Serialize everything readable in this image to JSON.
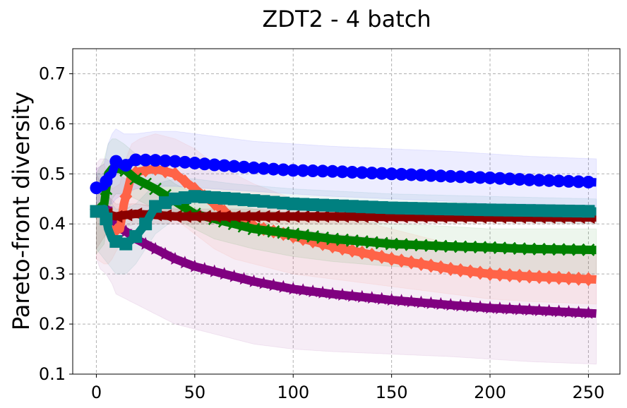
{
  "chart_data": {
    "type": "line",
    "title": "ZDT2 - 4 batch",
    "xlabel": "",
    "ylabel": "Pareto-front diversity",
    "xlim": [
      -12,
      266
    ],
    "ylim": [
      0.1,
      0.75
    ],
    "xticks": [
      0,
      50,
      100,
      150,
      200,
      250
    ],
    "xtick_labels": [
      "0",
      "50",
      "100",
      "150",
      "200",
      "250"
    ],
    "yticks": [
      0.1,
      0.2,
      0.3,
      0.4,
      0.5,
      0.6,
      0.7
    ],
    "ytick_labels": [
      "0.1",
      "0.2",
      "0.3",
      "0.4",
      "0.5",
      "0.6",
      "0.7"
    ],
    "grid": true,
    "x_max": 254,
    "series": [
      {
        "name": "purple-star",
        "color": "#800080",
        "marker": "star",
        "step": 5,
        "key_x": [
          0,
          2,
          5,
          8,
          10,
          15,
          20,
          30,
          40,
          50,
          60,
          70,
          80,
          100,
          120,
          150,
          180,
          200,
          220,
          254
        ],
        "key_y": [
          0.425,
          0.43,
          0.43,
          0.405,
          0.395,
          0.385,
          0.37,
          0.35,
          0.33,
          0.315,
          0.305,
          0.295,
          0.285,
          0.27,
          0.26,
          0.248,
          0.238,
          0.232,
          0.228,
          0.221
        ],
        "band_low": [
          0.33,
          0.31,
          0.3,
          0.28,
          0.26,
          0.25,
          0.24,
          0.22,
          0.2,
          0.19,
          0.18,
          0.17,
          0.16,
          0.15,
          0.145,
          0.14,
          0.135,
          0.13,
          0.125,
          0.12
        ],
        "band_high": [
          0.52,
          0.53,
          0.53,
          0.52,
          0.5,
          0.49,
          0.48,
          0.46,
          0.44,
          0.43,
          0.42,
          0.41,
          0.4,
          0.39,
          0.38,
          0.37,
          0.36,
          0.355,
          0.35,
          0.34
        ]
      },
      {
        "name": "tomato-diamond",
        "color": "#ff6347",
        "marker": "diamond",
        "step": 5,
        "key_x": [
          0,
          4,
          6,
          8,
          12,
          14,
          18,
          22,
          30,
          40,
          50,
          60,
          70,
          80,
          100,
          120,
          150,
          180,
          200,
          220,
          254
        ],
        "key_y": [
          0.425,
          0.43,
          0.395,
          0.385,
          0.39,
          0.44,
          0.5,
          0.505,
          0.51,
          0.5,
          0.47,
          0.44,
          0.41,
          0.395,
          0.375,
          0.355,
          0.33,
          0.31,
          0.3,
          0.295,
          0.289
        ],
        "band_low": [
          0.33,
          0.32,
          0.32,
          0.33,
          0.36,
          0.42,
          0.44,
          0.44,
          0.43,
          0.41,
          0.38,
          0.35,
          0.33,
          0.32,
          0.3,
          0.29,
          0.275,
          0.26,
          0.25,
          0.245,
          0.24
        ],
        "band_high": [
          0.51,
          0.52,
          0.49,
          0.47,
          0.48,
          0.52,
          0.56,
          0.57,
          0.58,
          0.57,
          0.55,
          0.52,
          0.5,
          0.48,
          0.45,
          0.42,
          0.39,
          0.36,
          0.35,
          0.345,
          0.34
        ]
      },
      {
        "name": "green-x",
        "color": "#008000",
        "marker": "x",
        "step": 5,
        "key_x": [
          0,
          4,
          6,
          8,
          10,
          14,
          20,
          30,
          40,
          50,
          60,
          70,
          80,
          100,
          120,
          150,
          180,
          200,
          220,
          254
        ],
        "key_y": [
          0.425,
          0.44,
          0.5,
          0.51,
          0.51,
          0.51,
          0.49,
          0.47,
          0.445,
          0.42,
          0.41,
          0.4,
          0.39,
          0.38,
          0.37,
          0.36,
          0.355,
          0.353,
          0.35,
          0.348
        ],
        "band_low": [
          0.34,
          0.36,
          0.42,
          0.45,
          0.46,
          0.46,
          0.45,
          0.43,
          0.41,
          0.39,
          0.37,
          0.36,
          0.35,
          0.335,
          0.325,
          0.315,
          0.31,
          0.305,
          0.3,
          0.3
        ],
        "band_high": [
          0.5,
          0.53,
          0.56,
          0.57,
          0.57,
          0.56,
          0.54,
          0.51,
          0.48,
          0.46,
          0.45,
          0.44,
          0.43,
          0.42,
          0.41,
          0.4,
          0.395,
          0.39,
          0.39,
          0.39
        ]
      },
      {
        "name": "darkred-triangle",
        "color": "#8b0000",
        "marker": "triangle-left",
        "step": 5,
        "key_x": [
          0,
          5,
          10,
          15,
          20,
          30,
          40,
          50,
          80,
          120,
          150,
          200,
          254
        ],
        "key_y": [
          0.425,
          0.42,
          0.415,
          0.418,
          0.42,
          0.418,
          0.415,
          0.415,
          0.415,
          0.415,
          0.414,
          0.413,
          0.413
        ],
        "band_low": [
          0.35,
          0.38,
          0.39,
          0.395,
          0.4,
          0.4,
          0.4,
          0.4,
          0.4,
          0.4,
          0.4,
          0.4,
          0.4
        ],
        "band_high": [
          0.5,
          0.46,
          0.44,
          0.44,
          0.44,
          0.435,
          0.43,
          0.43,
          0.43,
          0.43,
          0.43,
          0.43,
          0.43
        ]
      },
      {
        "name": "teal-square",
        "color": "#008080",
        "marker": "square",
        "step": 5,
        "key_x": [
          0,
          4,
          6,
          8,
          10,
          15,
          20,
          25,
          30,
          40,
          50,
          70,
          100,
          150,
          200,
          254
        ],
        "key_y": [
          0.425,
          0.43,
          0.39,
          0.37,
          0.365,
          0.36,
          0.375,
          0.4,
          0.435,
          0.45,
          0.455,
          0.45,
          0.44,
          0.432,
          0.428,
          0.425
        ],
        "band_low": [
          0.35,
          0.33,
          0.32,
          0.31,
          0.3,
          0.3,
          0.32,
          0.35,
          0.38,
          0.41,
          0.42,
          0.42,
          0.415,
          0.41,
          0.405,
          0.4
        ],
        "band_high": [
          0.5,
          0.5,
          0.46,
          0.44,
          0.43,
          0.43,
          0.44,
          0.46,
          0.48,
          0.49,
          0.49,
          0.48,
          0.47,
          0.46,
          0.455,
          0.45
        ]
      },
      {
        "name": "blue-circle",
        "color": "#0000ff",
        "marker": "circle",
        "step": 5,
        "key_x": [
          0,
          4,
          6,
          8,
          10,
          14,
          20,
          30,
          40,
          60,
          80,
          100,
          120,
          150,
          180,
          200,
          220,
          254
        ],
        "key_y": [
          0.472,
          0.475,
          0.495,
          0.5,
          0.525,
          0.515,
          0.528,
          0.527,
          0.525,
          0.518,
          0.512,
          0.507,
          0.505,
          0.5,
          0.495,
          0.492,
          0.488,
          0.483
        ],
        "band_low": [
          0.43,
          0.44,
          0.44,
          0.44,
          0.45,
          0.46,
          0.47,
          0.475,
          0.475,
          0.47,
          0.465,
          0.46,
          0.455,
          0.45,
          0.445,
          0.44,
          0.44,
          0.435
        ],
        "band_high": [
          0.51,
          0.52,
          0.56,
          0.58,
          0.59,
          0.58,
          0.58,
          0.585,
          0.585,
          0.575,
          0.565,
          0.56,
          0.555,
          0.55,
          0.545,
          0.54,
          0.535,
          0.53
        ]
      }
    ]
  }
}
